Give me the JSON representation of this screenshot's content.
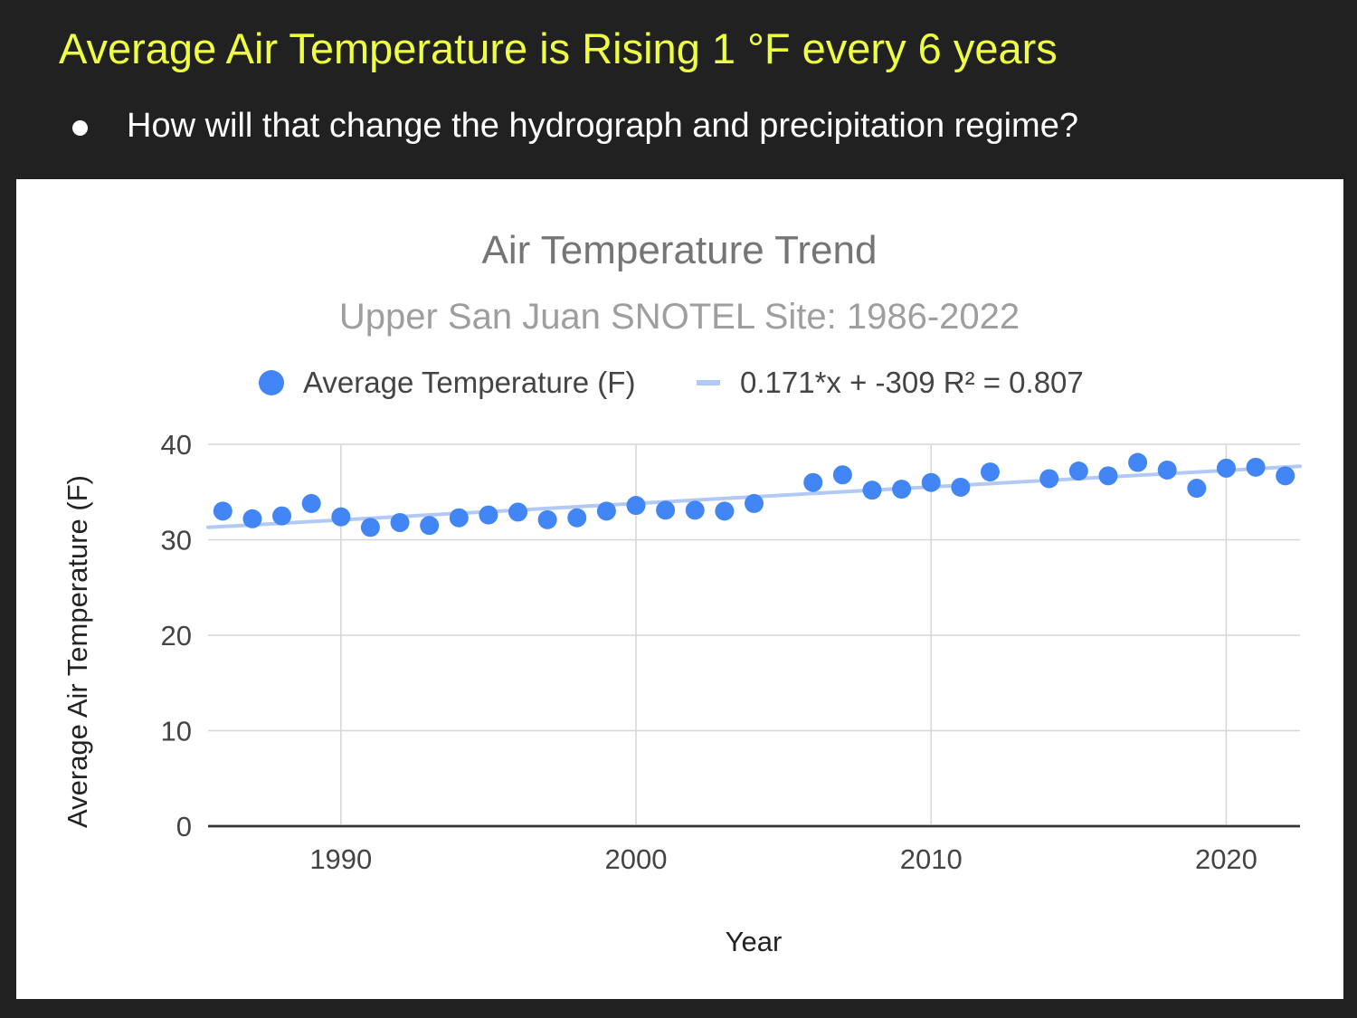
{
  "slide": {
    "title": "Average Air Temperature is Rising 1 °F every 6 years",
    "bullet": "How will that change the hydrograph and precipitation regime?",
    "title_color": "#eeff41",
    "background_color": "#212121"
  },
  "chart_data": {
    "type": "scatter",
    "title": "Air Temperature Trend",
    "subtitle": "Upper San Juan SNOTEL Site: 1986-2022",
    "xlabel": "Year",
    "ylabel": "Average Air Temperature (F)",
    "xlim": [
      1985.5,
      2022.5
    ],
    "ylim": [
      0,
      40
    ],
    "xticks": [
      1990,
      2000,
      2010,
      2020
    ],
    "xtick_labels": [
      "1990",
      "2000",
      "2010",
      "2020"
    ],
    "yticks": [
      0,
      10,
      20,
      30,
      40
    ],
    "ytick_labels": [
      "0",
      "10",
      "20",
      "30",
      "40"
    ],
    "grid": true,
    "legend_position": "top",
    "series": [
      {
        "name": "Average Temperature (F)",
        "color": "#4285f4",
        "x": [
          1986,
          1987,
          1988,
          1989,
          1990,
          1991,
          1992,
          1993,
          1994,
          1995,
          1996,
          1997,
          1998,
          1999,
          2000,
          2001,
          2002,
          2003,
          2004,
          2006,
          2007,
          2008,
          2009,
          2010,
          2011,
          2012,
          2014,
          2015,
          2016,
          2017,
          2018,
          2019,
          2020,
          2021,
          2022
        ],
        "y": [
          33.0,
          32.2,
          32.5,
          33.8,
          32.4,
          31.3,
          31.8,
          31.5,
          32.3,
          32.6,
          32.9,
          32.1,
          32.3,
          33.0,
          33.6,
          33.1,
          33.1,
          33.0,
          33.8,
          36.0,
          36.8,
          35.2,
          35.3,
          36.0,
          35.5,
          37.1,
          36.4,
          37.2,
          36.7,
          38.1,
          37.3,
          35.4,
          37.5,
          37.6,
          36.7
        ]
      }
    ],
    "trendline": {
      "name": "0.171*x + -309 R² = 0.807",
      "color": "#b3c9f5",
      "x": [
        1985.5,
        2022.5
      ],
      "y": [
        31.3,
        37.7
      ]
    }
  }
}
